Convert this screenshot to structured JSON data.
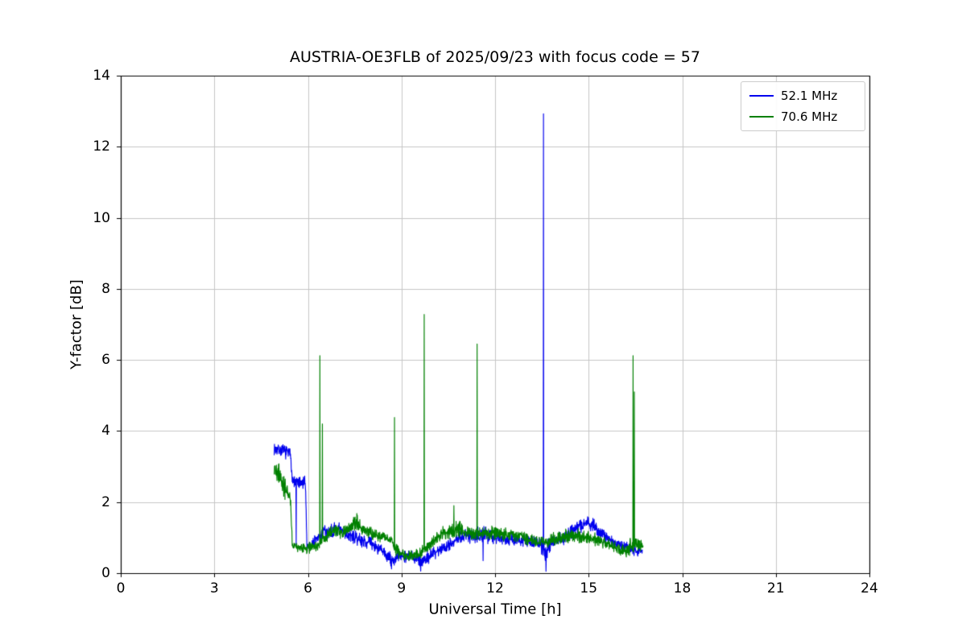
{
  "chart_data": {
    "type": "line",
    "title": "AUSTRIA-OE3FLB of 2025/09/23 with focus code = 57",
    "xlabel": "Universal Time [h]",
    "ylabel": "Y-factor [dB]",
    "xlim": [
      0,
      24
    ],
    "ylim": [
      0,
      14
    ],
    "xticks": [
      0,
      3,
      6,
      9,
      12,
      15,
      18,
      21,
      24
    ],
    "yticks": [
      0,
      2,
      4,
      6,
      8,
      10,
      12,
      14
    ],
    "grid": true,
    "grid_color": "#c6c6c6",
    "legend_position": "upper right",
    "series": [
      {
        "name": "52.1 MHz",
        "color": "#0000ee",
        "seed": 7,
        "keypoints": [
          [
            4.92,
            3.5,
            0.14
          ],
          [
            5.2,
            3.45,
            0.15
          ],
          [
            5.45,
            3.35,
            0.15
          ],
          [
            5.5,
            2.6,
            0.15
          ],
          [
            5.75,
            2.5,
            0.18
          ],
          [
            5.92,
            2.55,
            0.15
          ],
          [
            5.97,
            0.75,
            0.1
          ],
          [
            6.1,
            0.8,
            0.15
          ],
          [
            6.5,
            1.15,
            0.18
          ],
          [
            7.0,
            1.2,
            0.18
          ],
          [
            7.5,
            1.0,
            0.15
          ],
          [
            8.0,
            0.85,
            0.15
          ],
          [
            8.4,
            0.6,
            0.15
          ],
          [
            8.7,
            0.35,
            0.18
          ],
          [
            9.0,
            0.5,
            0.15
          ],
          [
            9.5,
            0.45,
            0.15
          ],
          [
            9.65,
            0.32,
            0.18
          ],
          [
            10.0,
            0.55,
            0.15
          ],
          [
            10.5,
            0.8,
            0.15
          ],
          [
            11.0,
            1.05,
            0.18
          ],
          [
            11.5,
            1.1,
            0.2
          ],
          [
            12.0,
            1.05,
            0.18
          ],
          [
            12.5,
            0.95,
            0.15
          ],
          [
            13.0,
            0.9,
            0.15
          ],
          [
            13.4,
            0.85,
            0.15
          ],
          [
            13.6,
            0.6,
            0.28
          ],
          [
            13.8,
            0.9,
            0.15
          ],
          [
            14.2,
            1.0,
            0.15
          ],
          [
            14.7,
            1.35,
            0.2
          ],
          [
            15.0,
            1.45,
            0.2
          ],
          [
            15.3,
            1.2,
            0.18
          ],
          [
            15.7,
            0.9,
            0.15
          ],
          [
            16.1,
            0.75,
            0.12
          ],
          [
            16.5,
            0.65,
            0.12
          ],
          [
            16.72,
            0.6,
            0.1
          ]
        ],
        "spikes": [
          [
            5.62,
            0.8
          ],
          [
            8.68,
            0.12
          ],
          [
            9.62,
            0.06
          ],
          [
            11.62,
            0.35
          ],
          [
            13.55,
            12.93
          ],
          [
            13.63,
            0.05
          ]
        ]
      },
      {
        "name": "70.6 MHz",
        "color": "#008000",
        "seed": 19,
        "keypoints": [
          [
            4.92,
            2.95,
            0.2
          ],
          [
            5.1,
            2.75,
            0.25
          ],
          [
            5.3,
            2.3,
            0.25
          ],
          [
            5.45,
            2.05,
            0.2
          ],
          [
            5.5,
            0.75,
            0.12
          ],
          [
            5.9,
            0.7,
            0.12
          ],
          [
            6.3,
            0.75,
            0.12
          ],
          [
            6.55,
            1.0,
            0.15
          ],
          [
            6.8,
            1.2,
            0.15
          ],
          [
            7.2,
            1.15,
            0.15
          ],
          [
            7.55,
            1.45,
            0.18
          ],
          [
            7.8,
            1.2,
            0.15
          ],
          [
            8.3,
            1.05,
            0.15
          ],
          [
            8.7,
            0.9,
            0.12
          ],
          [
            8.85,
            0.6,
            0.15
          ],
          [
            9.2,
            0.5,
            0.15
          ],
          [
            9.6,
            0.55,
            0.15
          ],
          [
            9.85,
            0.75,
            0.15
          ],
          [
            10.2,
            1.05,
            0.18
          ],
          [
            10.65,
            1.25,
            0.2
          ],
          [
            11.0,
            1.2,
            0.18
          ],
          [
            11.35,
            1.1,
            0.15
          ],
          [
            11.6,
            1.1,
            0.15
          ],
          [
            12.0,
            1.15,
            0.18
          ],
          [
            12.4,
            1.1,
            0.15
          ],
          [
            12.8,
            1.05,
            0.15
          ],
          [
            13.2,
            0.9,
            0.15
          ],
          [
            13.6,
            0.85,
            0.15
          ],
          [
            14.0,
            1.0,
            0.15
          ],
          [
            14.5,
            1.05,
            0.18
          ],
          [
            15.0,
            1.0,
            0.15
          ],
          [
            15.5,
            0.85,
            0.15
          ],
          [
            15.9,
            0.7,
            0.12
          ],
          [
            16.2,
            0.6,
            0.15
          ],
          [
            16.35,
            0.8,
            0.2
          ],
          [
            16.6,
            0.8,
            0.15
          ],
          [
            16.75,
            0.75,
            0.1
          ]
        ],
        "spikes": [
          [
            6.38,
            6.12
          ],
          [
            6.46,
            4.2
          ],
          [
            7.57,
            1.68
          ],
          [
            8.78,
            4.38
          ],
          [
            9.73,
            7.28
          ],
          [
            10.68,
            1.9
          ],
          [
            11.42,
            6.45
          ],
          [
            16.42,
            6.12
          ],
          [
            16.46,
            5.1
          ]
        ]
      }
    ]
  }
}
